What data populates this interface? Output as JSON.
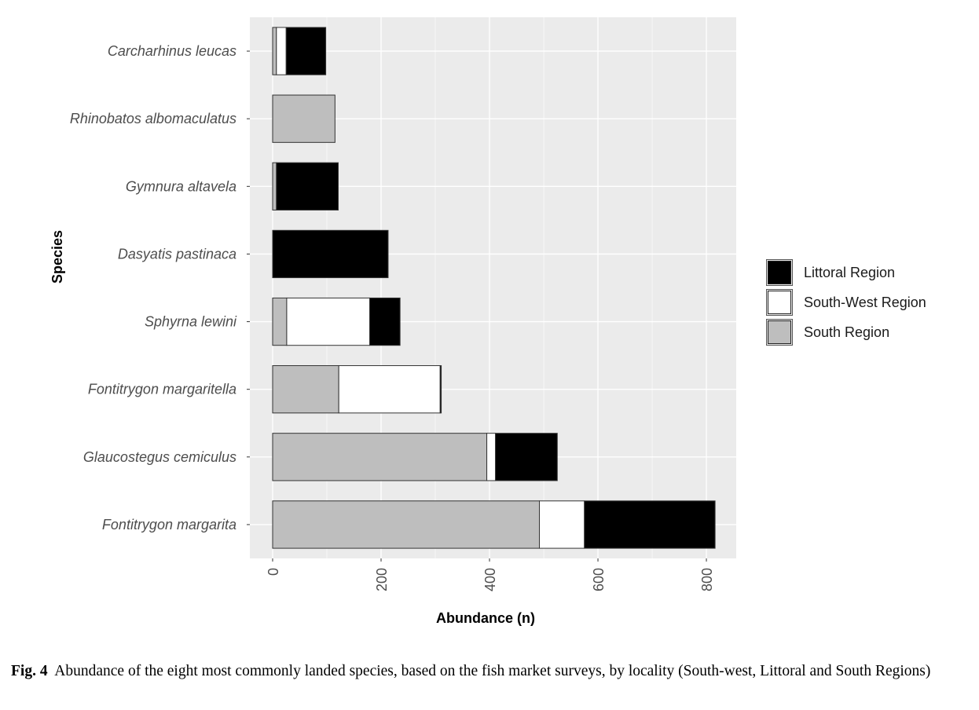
{
  "chart_data": {
    "type": "bar",
    "orientation": "horizontal",
    "stacked": true,
    "xlabel": "Abundance (n)",
    "ylabel": "Species",
    "xlim": [
      -42,
      855
    ],
    "xticks": [
      0,
      200,
      400,
      600,
      800
    ],
    "grid": true,
    "legend_position": "right",
    "categories": [
      "Carcharhinus leucas",
      "Rhinobatos albomaculatus",
      "Gymnura altavela",
      "Dasyatis pastinaca",
      "Sphyrna lewini",
      "Fontitrygon margaritella",
      "Glaucostegus cemiculus",
      "Fontitrygon margarita"
    ],
    "series": [
      {
        "name": "South Region",
        "color": "#bebebe",
        "values": [
          7,
          115,
          7,
          0,
          26,
          122,
          395,
          492
        ]
      },
      {
        "name": "South-West Region",
        "color": "#ffffff",
        "values": [
          18,
          0,
          0,
          0,
          153,
          187,
          16,
          83
        ]
      },
      {
        "name": "Littoral Region",
        "color": "#000000",
        "values": [
          73,
          0,
          114,
          213,
          56,
          2,
          114,
          241
        ]
      }
    ],
    "legend_order": [
      "Littoral Region",
      "South-West Region",
      "South Region"
    ]
  },
  "legend": {
    "items": [
      {
        "label": "Littoral Region",
        "color": "#000000"
      },
      {
        "label": "South-West Region",
        "color": "#ffffff"
      },
      {
        "label": "South Region",
        "color": "#bebebe"
      }
    ]
  },
  "caption": {
    "label": "Fig. 4",
    "text": "Abundance of the eight most commonly landed species, based on the fish market surveys, by locality (South-west, Littoral and South Regions)"
  }
}
